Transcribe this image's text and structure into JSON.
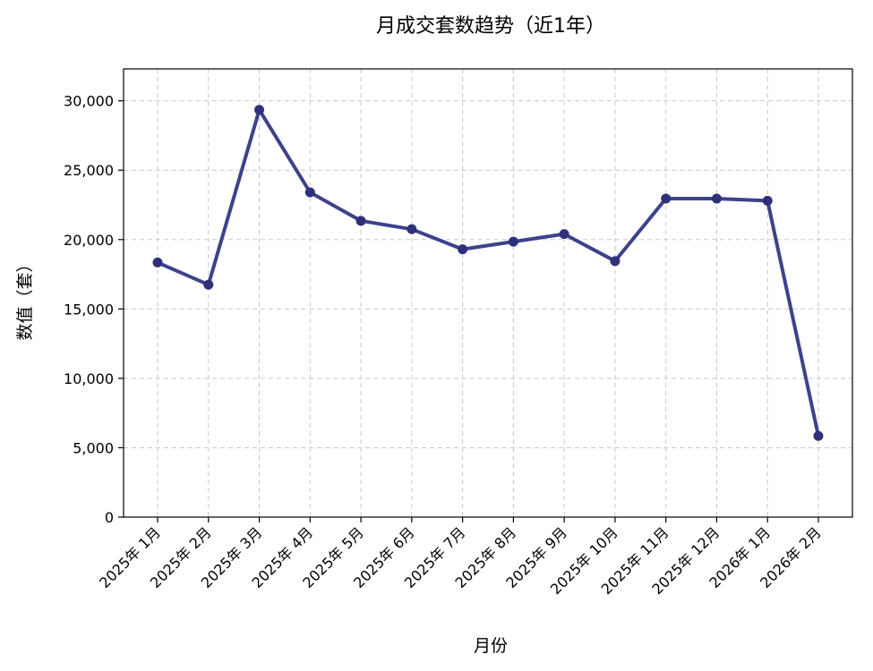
{
  "chart_data": {
    "type": "line",
    "title": "月成交套数趋势（近1年）",
    "xlabel": "月份",
    "ylabel": "数值（套）",
    "categories": [
      "2025年 1月",
      "2025年 2月",
      "2025年 3月",
      "2025年 4月",
      "2025年 5月",
      "2025年 6月",
      "2025年 7月",
      "2025年 8月",
      "2025年 9月",
      "2025年 10月",
      "2025年 11月",
      "2025年 12月",
      "2026年 1月",
      "2026年 2月"
    ],
    "series": [
      {
        "values": [
          18350,
          16750,
          29350,
          23400,
          21350,
          20750,
          19300,
          19850,
          20400,
          18450,
          22950,
          22950,
          22800,
          5850
        ]
      }
    ],
    "ylim": [
      0,
      32300
    ],
    "yticks": [
      0,
      5000,
      10000,
      15000,
      20000,
      25000,
      30000
    ],
    "ytick_labels": [
      "0",
      "5,000",
      "10,000",
      "15,000",
      "20,000",
      "25,000",
      "30,000"
    ],
    "grid": true,
    "line_color": "#3d428b",
    "marker_color": "#2e317a"
  }
}
